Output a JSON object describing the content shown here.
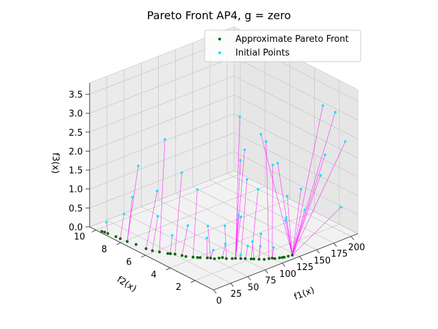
{
  "chart_data": {
    "type": "scatter",
    "title": "Pareto Front AP4, g = zero",
    "xlabel": "f1(x)",
    "ylabel": "f2(x)",
    "zlabel": "f3(x)",
    "xlim": [
      0,
      210
    ],
    "ylim": [
      0.5,
      10.5
    ],
    "zlim": [
      0,
      3.8
    ],
    "x_ticks": [
      "0",
      "25",
      "50",
      "75",
      "100",
      "125",
      "150",
      "175",
      "200"
    ],
    "y_ticks": [
      "2",
      "4",
      "6",
      "8",
      "10"
    ],
    "z_ticks": [
      "0.0",
      "0.5",
      "1.0",
      "1.5",
      "2.0",
      "2.5",
      "3.0",
      "3.5"
    ],
    "grid": true,
    "legend": "top-right",
    "series": [
      {
        "name": "Approximate Pareto Front",
        "color": "#006400",
        "points": [
          [
            1.5,
            9.6,
            0.02
          ],
          [
            2,
            9.4,
            0.03
          ],
          [
            3,
            9.2,
            0.02
          ],
          [
            4,
            8.6,
            0.03
          ],
          [
            5,
            8.3,
            0.02
          ],
          [
            6,
            7.8,
            0.02
          ],
          [
            8,
            7.2,
            0.03
          ],
          [
            10,
            6.5,
            0.02
          ],
          [
            12,
            6.1,
            0.02
          ],
          [
            15,
            5.7,
            0.03
          ],
          [
            20,
            5.3,
            0.02
          ],
          [
            22,
            5.2,
            0.02
          ],
          [
            25,
            5.0,
            0.02
          ],
          [
            28,
            4.6,
            0.03
          ],
          [
            30,
            4.4,
            0.02
          ],
          [
            35,
            4.1,
            0.02
          ],
          [
            38,
            3.9,
            0.02
          ],
          [
            40,
            3.8,
            0.02
          ],
          [
            45,
            3.5,
            0.03
          ],
          [
            48,
            3.4,
            0.02
          ],
          [
            50,
            3.2,
            0.02
          ],
          [
            55,
            3.1,
            0.02
          ],
          [
            58,
            3.0,
            0.03
          ],
          [
            60,
            2.8,
            0.02
          ],
          [
            65,
            2.6,
            0.02
          ],
          [
            68,
            2.5,
            0.02
          ],
          [
            72,
            2.3,
            0.02
          ],
          [
            75,
            2.1,
            0.03
          ],
          [
            80,
            1.9,
            0.02
          ],
          [
            82,
            1.8,
            0.02
          ],
          [
            86,
            1.6,
            0.02
          ],
          [
            90,
            1.4,
            0.02
          ],
          [
            95,
            1.3,
            0.02
          ],
          [
            98,
            1.2,
            0.03
          ],
          [
            100,
            1.1,
            0.02
          ],
          [
            105,
            1.0,
            0.02
          ],
          [
            108,
            0.95,
            0.02
          ],
          [
            110,
            0.9,
            0.02
          ],
          [
            115,
            0.85,
            0.02
          ],
          [
            120,
            0.8,
            0.02
          ]
        ]
      },
      {
        "name": "Initial Points",
        "color": "#00e5ff",
        "points": [
          [
            3,
            9.3,
            0.3
          ],
          [
            10,
            7.6,
            1.2
          ],
          [
            12,
            8.4,
            0.6
          ],
          [
            18,
            6.0,
            0.9
          ],
          [
            22,
            7.8,
            1.9
          ],
          [
            28,
            6.6,
            1.4
          ],
          [
            30,
            5.5,
            0.4
          ],
          [
            32,
            6.2,
            2.8
          ],
          [
            35,
            5.0,
            2.1
          ],
          [
            40,
            4.8,
            0.7
          ],
          [
            45,
            4.3,
            1.7
          ],
          [
            48,
            3.7,
            0.5
          ],
          [
            52,
            3.4,
            0.2
          ],
          [
            58,
            2.8,
            0.9
          ],
          [
            62,
            4.4,
            0.6
          ],
          [
            66,
            3.2,
            0.3
          ],
          [
            70,
            2.2,
            0.15
          ],
          [
            74,
            2.6,
            1.1
          ],
          [
            80,
            1.8,
            0.5
          ],
          [
            84,
            2.4,
            0.25
          ],
          [
            88,
            1.6,
            0.35
          ],
          [
            92,
            3.4,
            0.8
          ],
          [
            96,
            2.0,
            0.55
          ],
          [
            100,
            1.2,
            0.3
          ],
          [
            104,
            1.5,
            2.4
          ],
          [
            108,
            3.8,
            1.6
          ],
          [
            112,
            4.6,
            3.1
          ],
          [
            118,
            2.8,
            2.7
          ],
          [
            122,
            1.4,
            0.9
          ],
          [
            126,
            3.9,
            1.2
          ],
          [
            130,
            5.2,
            2.0
          ],
          [
            135,
            2.2,
            0.6
          ],
          [
            140,
            6.1,
            1.5
          ],
          [
            145,
            2.6,
            1.1
          ],
          [
            150,
            5.0,
            2.3
          ],
          [
            156,
            1.8,
            0.8
          ],
          [
            160,
            4.2,
            1.6
          ],
          [
            168,
            1.0,
            3.6
          ],
          [
            174,
            3.1,
            1.0
          ],
          [
            182,
            1.6,
            2.1
          ],
          [
            188,
            2.3,
            1.4
          ],
          [
            196,
            1.1,
            0.7
          ],
          [
            204,
            2.0,
            3.0
          ],
          [
            208,
            1.4,
            2.3
          ]
        ]
      }
    ]
  },
  "link_color": "#ff00ff"
}
